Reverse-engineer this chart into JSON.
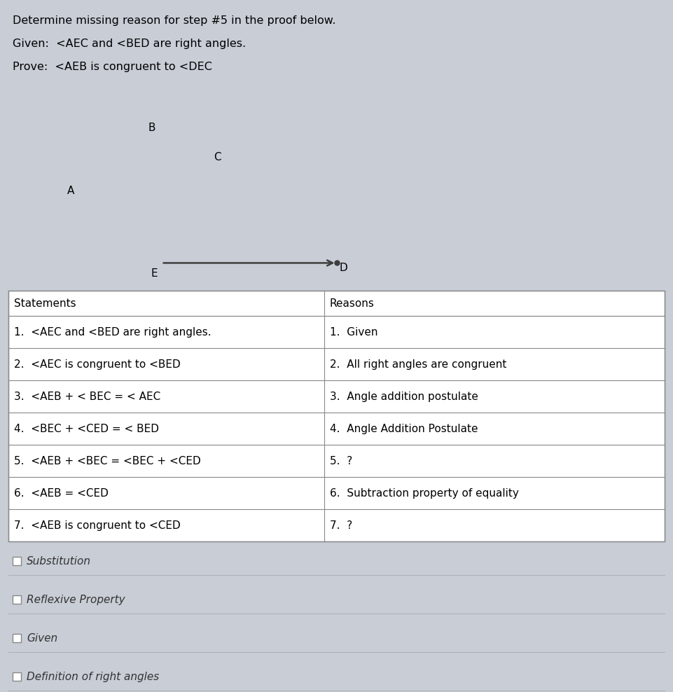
{
  "background_color": "#c8cdd6",
  "title_text": "Determine missing reason for step #5 in the proof below.",
  "given_text": "Given:  ‹AEC and ‹BED are right angles.",
  "prove_text": "Prove:  ‹AEB is congruent to ‹DEC",
  "table_header": [
    "Statements",
    "Reasons"
  ],
  "table_rows": [
    [
      "1.  <AEC and <BED are right angles.",
      "1.  Given"
    ],
    [
      "2.  <AEC is congruent to <BED",
      "2.  All right angles are congruent"
    ],
    [
      "3.  <AEB + < BEC = < AEC",
      "3.  Angle addition postulate"
    ],
    [
      "4.  <BEC + <CED = < BED",
      "4.  Angle Addition Postulate"
    ],
    [
      "5.  <AEB + <BEC = <BEC + <CED",
      "5.  ?"
    ],
    [
      "6.  <AEB = <CED",
      "6.  Subtraction property of equality"
    ],
    [
      "7.  <AEB is congruent to <CED",
      "7.  ?"
    ]
  ],
  "choices": [
    "Substitution",
    "Reflexive Property",
    "Given",
    "Definition of right angles"
  ],
  "arrow_color": "#3d3d3d",
  "line_color": "#555555",
  "text_color": "#1a1a2e"
}
